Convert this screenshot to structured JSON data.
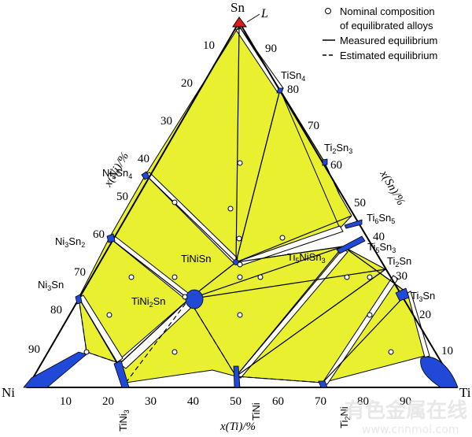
{
  "vertices": {
    "top": "Sn",
    "left": "Ni",
    "right": "Ti"
  },
  "liquid_label": "L",
  "axes": {
    "left": {
      "title": "x(Ni)/%",
      "ticks": [
        "10",
        "20",
        "30",
        "40",
        "50",
        "60",
        "70",
        "80",
        "90"
      ]
    },
    "right": {
      "title": "x(Sn)/%",
      "ticks": [
        "10",
        "20",
        "30",
        "40",
        "50",
        "60",
        "70",
        "80",
        "90"
      ]
    },
    "bottom": {
      "title": "x(Ti)/%",
      "ticks": [
        "10",
        "20",
        "30",
        "40",
        "50",
        "60",
        "70",
        "80",
        "90"
      ]
    }
  },
  "legend": {
    "nominal": "Nominal composition of equilibrated alloys",
    "nominal_line1": "Nominal composition",
    "nominal_line2": "of equilibrated alloys",
    "measured": "Measured equilibrium",
    "estimated": "Estimated equilibrium"
  },
  "phases": {
    "TiSn4": "TiSn4",
    "Ti2Sn3": "Ti2Sn3",
    "Ti6Sn5": "Ti6Sn5",
    "Ti5Sn3": "Ti5Sn3",
    "Ti2Sn": "Ti2Sn",
    "Ti3Sn": "Ti3Sn",
    "Ni3Sn4": "Ni3Sn4",
    "Ni3Sn2": "Ni3Sn2",
    "Ni3Sn": "Ni3Sn",
    "TiNiSn": "TiNiSn",
    "Ti5NiSn3": "Ti5NiSn3",
    "TiNi2Sn": "TiNi2Sn",
    "TiNi3": "TiNi3",
    "TiNi": "TiNi",
    "Ti2Ni": "Ti2Ni"
  },
  "watermark": {
    "main": "有色金属在线",
    "url": "www.cnnmol.com"
  },
  "colors": {
    "region": "#e8f030",
    "phase": "#1f49d6",
    "liquid": "#e01b1b",
    "line": "#000000"
  }
}
